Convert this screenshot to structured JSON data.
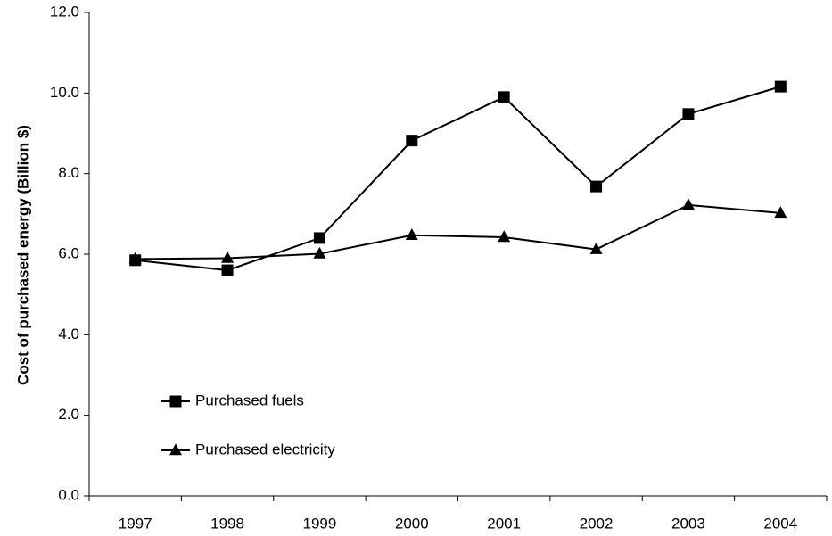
{
  "chart_data": {
    "type": "line",
    "title": "",
    "xlabel": "",
    "ylabel": "Cost of purchased energy (Billion $)",
    "categories": [
      "1997",
      "1998",
      "1999",
      "2000",
      "2001",
      "2002",
      "2003",
      "2004"
    ],
    "ylim": [
      0,
      12
    ],
    "yticks": [
      "0.0",
      "2.0",
      "4.0",
      "6.0",
      "8.0",
      "10.0",
      "12.0"
    ],
    "grid": false,
    "legend_position": "lower-left",
    "series": [
      {
        "name": "Purchased fuels",
        "marker": "square",
        "color": "#000000",
        "values": [
          5.85,
          5.6,
          6.4,
          8.82,
          9.9,
          7.68,
          9.48,
          10.16
        ]
      },
      {
        "name": "Purchased electricity",
        "marker": "triangle",
        "color": "#000000",
        "values": [
          5.88,
          5.9,
          6.01,
          6.47,
          6.42,
          6.12,
          7.22,
          7.02
        ]
      }
    ]
  }
}
